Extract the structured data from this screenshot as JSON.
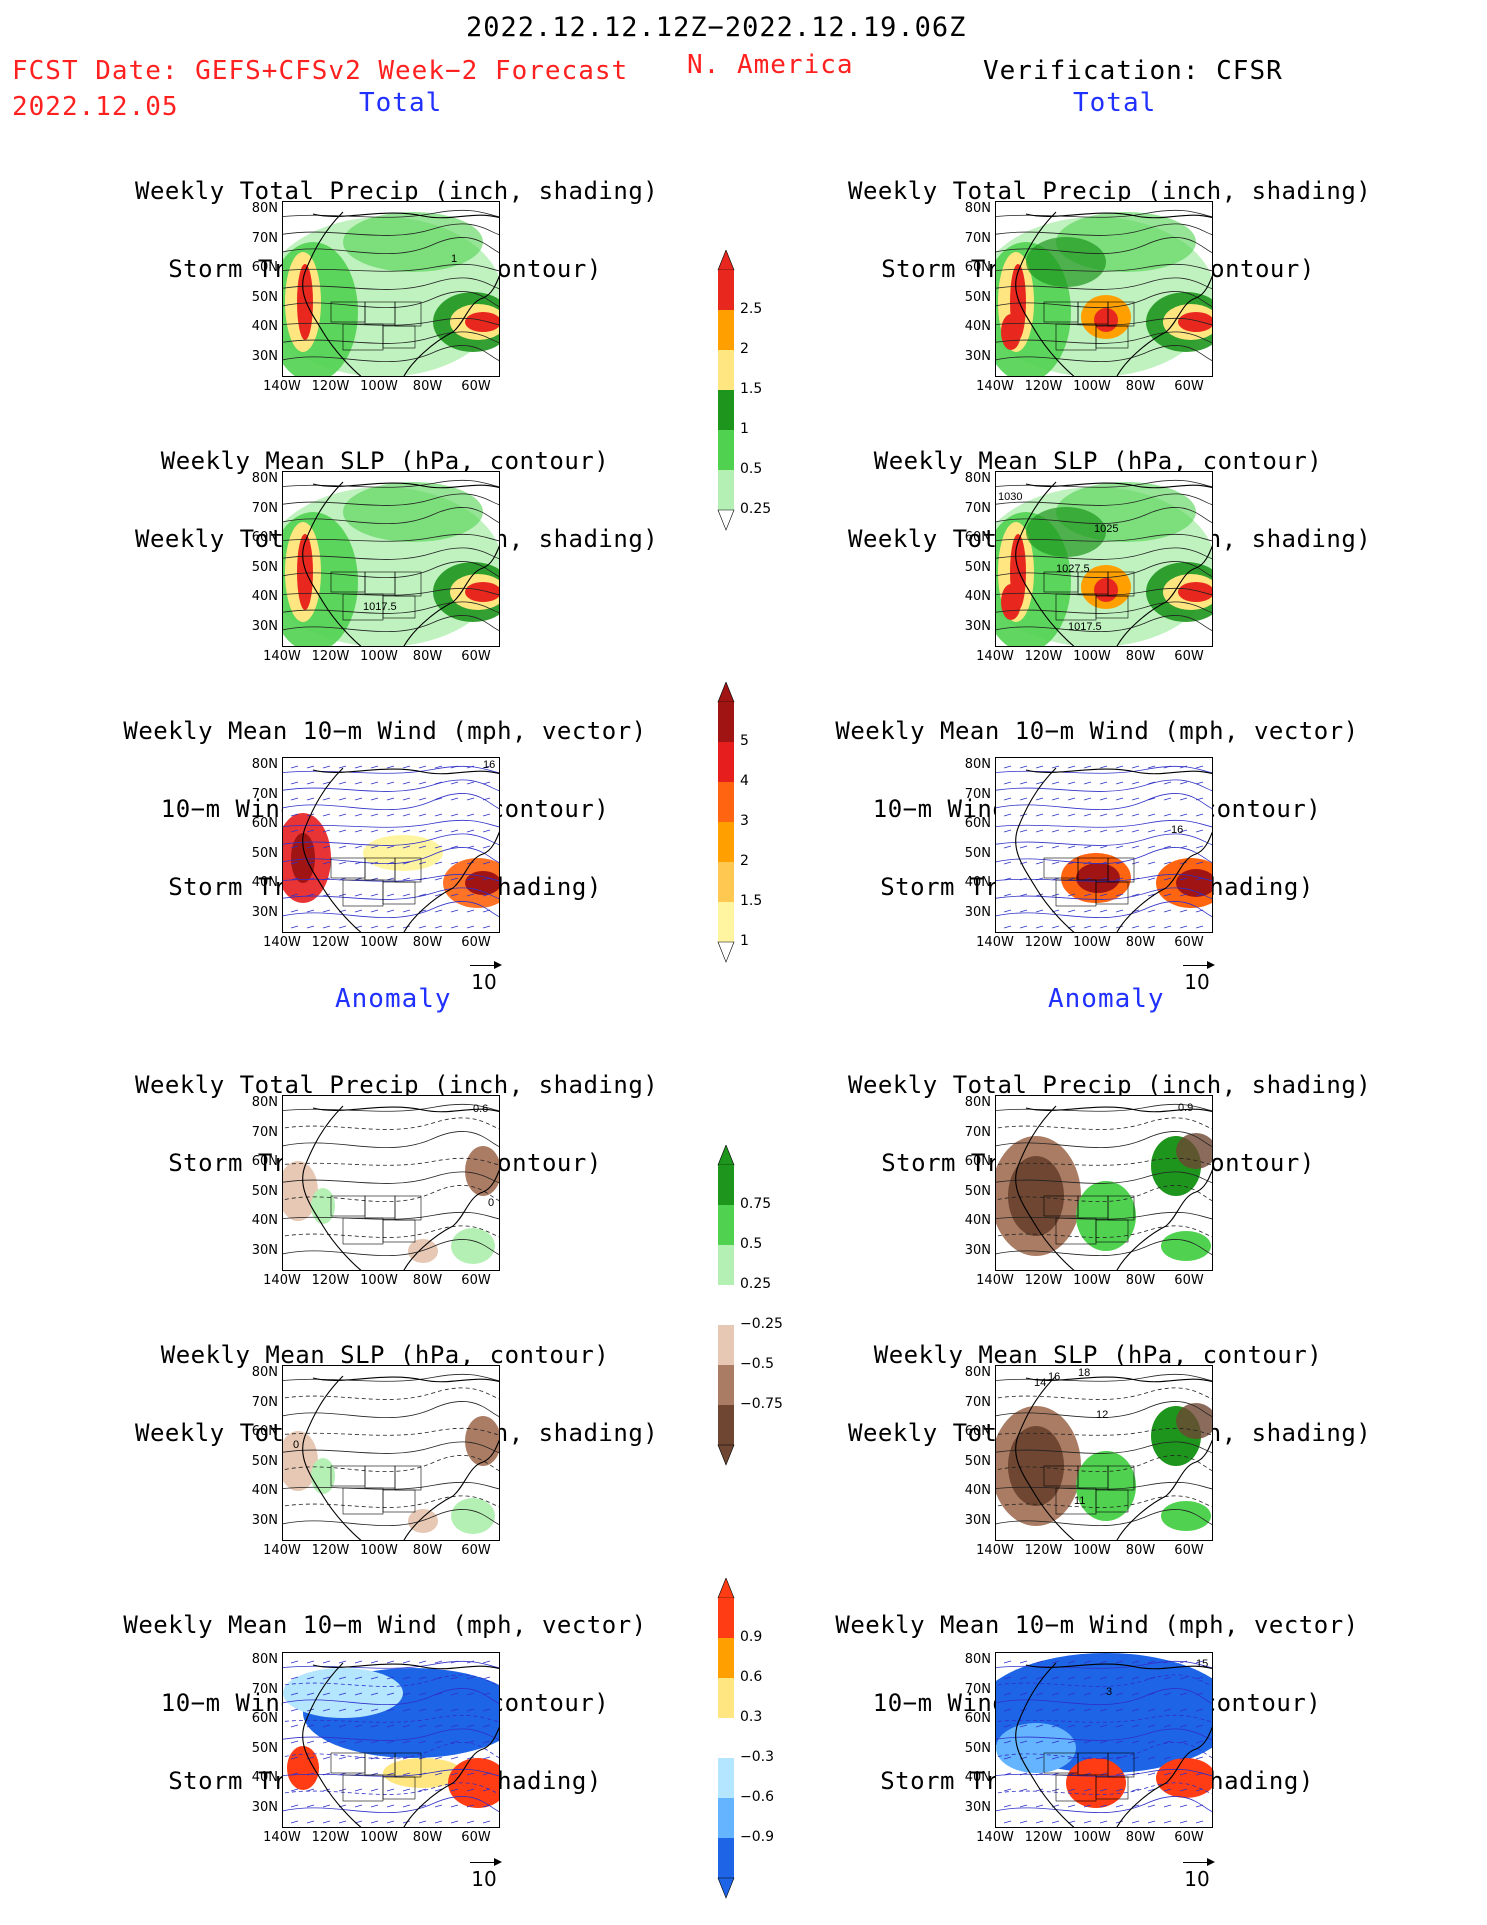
{
  "header": {
    "date_range": "2022.12.12.12Z−2022.12.19.06Z",
    "fcst_label": "FCST Date: GEFS+CFSv2 Week−2 Forecast",
    "fcst_date": "2022.12.05",
    "region": "N. America",
    "verification": "Verification: CFSR"
  },
  "sections": {
    "total_left": "Total",
    "total_right": "Total",
    "anomaly_left": "Anomaly",
    "anomaly_right": "Anomaly"
  },
  "titles": {
    "precip_storm": [
      "Weekly Total Precip (inch, shading)",
      "Storm Track Density (contour)"
    ],
    "slp_precip": [
      "Weekly Mean SLP (hPa, contour)",
      "Weekly Total Precip (inch, shading)"
    ],
    "wind_storm": [
      "Weekly Mean 10−m Wind (mph, vector)",
      "10−m Wind Speed (mph, contour)",
      "Storm Track Density (shading)"
    ]
  },
  "axes": {
    "y_ticks": [
      "80N",
      "70N",
      "60N",
      "50N",
      "40N",
      "30N"
    ],
    "x_ticks": [
      "140W",
      "120W",
      "100W",
      "80W",
      "60W"
    ]
  },
  "vector_ref": "10",
  "contour_labels": {
    "fc_total_precip": "1",
    "fc_total_slp": "1017.5",
    "fc_total_wind": "16",
    "ob_total_slp_a": "1030",
    "ob_total_slp_b": "1025",
    "ob_total_slp_c": "1027.5",
    "ob_total_slp_d": "1017.5",
    "ob_total_wind": "16",
    "fc_anom_precip_a": "0.6",
    "fc_anom_precip_b": "0",
    "fc_anom_slp": "0",
    "ob_anom_precip": "0.9",
    "ob_anom_slp_a": "14",
    "ob_anom_slp_b": "16",
    "ob_anom_slp_c": "18",
    "ob_anom_slp_d": "12",
    "ob_anom_slp_e": "11",
    "ob_anom_wind_a": "3",
    "ob_anom_wind_b": "15"
  },
  "colorbars": {
    "precip_total": {
      "labels": [
        "2.5",
        "2",
        "1.5",
        "1",
        "0.5",
        "0.25"
      ],
      "colors": [
        "#e8281e",
        "#ffa000",
        "#ffe680",
        "#1e961e",
        "#50d250",
        "#b4f0b4"
      ]
    },
    "storm_total": {
      "labels": [
        "5",
        "4",
        "3",
        "2",
        "1.5",
        "1"
      ],
      "colors": [
        "#a01414",
        "#e61e1e",
        "#ff6410",
        "#ffa000",
        "#ffc850",
        "#fff5a0"
      ]
    },
    "precip_anom": {
      "labels": [
        "0.75",
        "0.5",
        "0.25",
        "−0.25",
        "−0.5",
        "−0.75"
      ],
      "colors": [
        "#1e961e",
        "#50d250",
        "#b4f0b4",
        "#ffffff",
        "#e6c8b4",
        "#aa7c64",
        "#6e4632"
      ]
    },
    "storm_anom": {
      "labels": [
        "0.9",
        "0.6",
        "0.3",
        "−0.3",
        "−0.6",
        "−0.9"
      ],
      "colors": [
        "#ff3c14",
        "#ffa000",
        "#ffe680",
        "#ffffff",
        "#b4e6ff",
        "#64b4ff",
        "#1e64e6"
      ]
    }
  }
}
